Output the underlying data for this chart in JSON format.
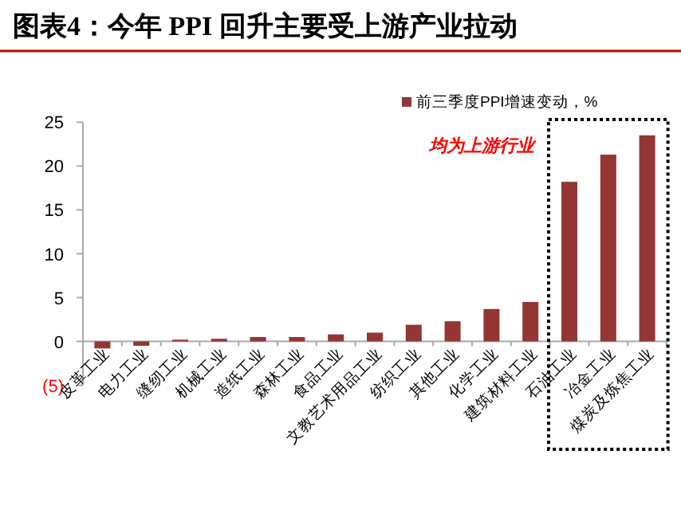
{
  "chart_data": {
    "type": "bar",
    "title": "图表4：今年 PPI 回升主要受上游产业拉动",
    "categories": [
      "皮革工业",
      "电力工业",
      "缝纫工业",
      "机械工业",
      "造纸工业",
      "森林工业",
      "食品工业",
      "文教艺术用品工业",
      "纺织工业",
      "其他工业",
      "化学工业",
      "建筑材料工业",
      "石油工业",
      "冶金工业",
      "煤炭及炼焦工业"
    ],
    "series": [
      {
        "name": "前三季度PPI增速变动，%",
        "color": "#943634",
        "values": [
          -0.8,
          -0.5,
          0.2,
          0.3,
          0.5,
          0.5,
          0.8,
          1.0,
          1.9,
          2.3,
          3.7,
          4.5,
          18.2,
          21.3,
          23.5
        ]
      }
    ],
    "ylim": [
      -5,
      25
    ],
    "yticks": [
      {
        "value": -5,
        "label": "(5)"
      },
      0,
      5,
      10,
      15,
      20,
      25
    ],
    "annotations": [
      "均为上游行业"
    ],
    "legend": "top right",
    "grid": false
  }
}
